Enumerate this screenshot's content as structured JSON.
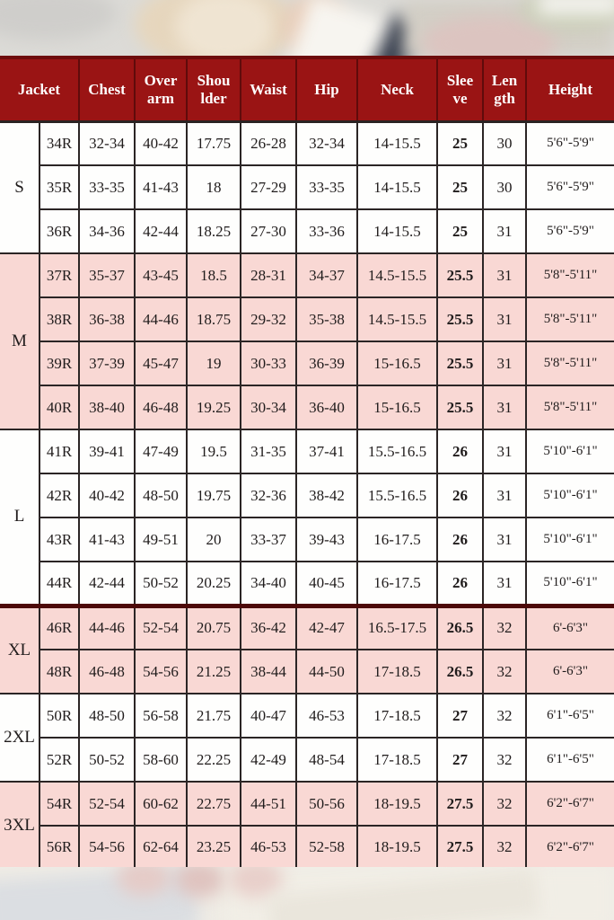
{
  "colors": {
    "header_bg": "#9a1414",
    "header_text": "#ffffff",
    "pink_row": "#f9d8d4",
    "white_row": "#fefefd",
    "grid_line": "#2b2525",
    "section_separator": "#4d0909",
    "body_text": "#201c1c"
  },
  "chart_data": {
    "type": "table",
    "title": "",
    "columns": [
      "Jacket",
      "Chest",
      "Over arm",
      "Shou lder",
      "Waist",
      "Hip",
      "Neck",
      "Slee ve",
      "Len gth",
      "Height"
    ],
    "pink_groups": [
      "M",
      "XL",
      "3XL"
    ],
    "groups": [
      {
        "label": "S",
        "rows": [
          [
            "34R",
            "32-34",
            "40-42",
            "17.75",
            "26-28",
            "32-34",
            "14-15.5",
            "25",
            "30",
            "5'6\"-5'9\""
          ],
          [
            "35R",
            "33-35",
            "41-43",
            "18",
            "27-29",
            "33-35",
            "14-15.5",
            "25",
            "30",
            "5'6\"-5'9\""
          ],
          [
            "36R",
            "34-36",
            "42-44",
            "18.25",
            "27-30",
            "33-36",
            "14-15.5",
            "25",
            "31",
            "5'6\"-5'9\""
          ]
        ]
      },
      {
        "label": "M",
        "rows": [
          [
            "37R",
            "35-37",
            "43-45",
            "18.5",
            "28-31",
            "34-37",
            "14.5-15.5",
            "25.5",
            "31",
            "5'8\"-5'11\""
          ],
          [
            "38R",
            "36-38",
            "44-46",
            "18.75",
            "29-32",
            "35-38",
            "14.5-15.5",
            "25.5",
            "31",
            "5'8\"-5'11\""
          ],
          [
            "39R",
            "37-39",
            "45-47",
            "19",
            "30-33",
            "36-39",
            "15-16.5",
            "25.5",
            "31",
            "5'8\"-5'11\""
          ],
          [
            "40R",
            "38-40",
            "46-48",
            "19.25",
            "30-34",
            "36-40",
            "15-16.5",
            "25.5",
            "31",
            "5'8\"-5'11\""
          ]
        ]
      },
      {
        "label": "L",
        "rows": [
          [
            "41R",
            "39-41",
            "47-49",
            "19.5",
            "31-35",
            "37-41",
            "15.5-16.5",
            "26",
            "31",
            "5'10\"-6'1\""
          ],
          [
            "42R",
            "40-42",
            "48-50",
            "19.75",
            "32-36",
            "38-42",
            "15.5-16.5",
            "26",
            "31",
            "5'10\"-6'1\""
          ],
          [
            "43R",
            "41-43",
            "49-51",
            "20",
            "33-37",
            "39-43",
            "16-17.5",
            "26",
            "31",
            "5'10\"-6'1\""
          ],
          [
            "44R",
            "42-44",
            "50-52",
            "20.25",
            "34-40",
            "40-45",
            "16-17.5",
            "26",
            "31",
            "5'10\"-6'1\""
          ]
        ]
      },
      {
        "label": "XL",
        "separator_before": true,
        "rows": [
          [
            "46R",
            "44-46",
            "52-54",
            "20.75",
            "36-42",
            "42-47",
            "16.5-17.5",
            "26.5",
            "32",
            "6'-6'3\""
          ],
          [
            "48R",
            "46-48",
            "54-56",
            "21.25",
            "38-44",
            "44-50",
            "17-18.5",
            "26.5",
            "32",
            "6'-6'3\""
          ]
        ]
      },
      {
        "label": "2XL",
        "rows": [
          [
            "50R",
            "48-50",
            "56-58",
            "21.75",
            "40-47",
            "46-53",
            "17-18.5",
            "27",
            "32",
            "6'1\"-6'5\""
          ],
          [
            "52R",
            "50-52",
            "58-60",
            "22.25",
            "42-49",
            "48-54",
            "17-18.5",
            "27",
            "32",
            "6'1\"-6'5\""
          ]
        ]
      },
      {
        "label": "3XL",
        "rows": [
          [
            "54R",
            "52-54",
            "60-62",
            "22.75",
            "44-51",
            "50-56",
            "18-19.5",
            "27.5",
            "32",
            "6'2\"-6'7\""
          ],
          [
            "56R",
            "54-56",
            "62-64",
            "23.25",
            "46-53",
            "52-58",
            "18-19.5",
            "27.5",
            "32",
            "6'2\"-6'7\""
          ]
        ]
      }
    ]
  }
}
